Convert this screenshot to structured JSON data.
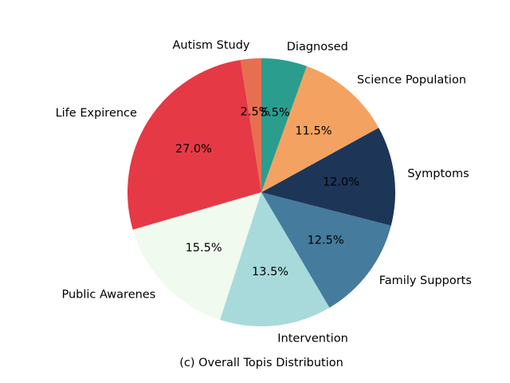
{
  "chart_data": {
    "type": "pie",
    "title": "",
    "caption": "(c) Overall Topis Distribution",
    "start_angle_deg": 90,
    "direction": "counterclockwise",
    "slices": [
      {
        "label": "Autism Study",
        "value": 2.5,
        "pct_label": "2.5%",
        "color": "#e76f51"
      },
      {
        "label": "Life Expirence",
        "value": 27.0,
        "pct_label": "27.0%",
        "color": "#e63946"
      },
      {
        "label": "Public Awarenes",
        "value": 15.5,
        "pct_label": "15.5%",
        "color": "#f1faee"
      },
      {
        "label": "Intervention",
        "value": 13.5,
        "pct_label": "13.5%",
        "color": "#a8dadc"
      },
      {
        "label": "Family Supports",
        "value": 12.5,
        "pct_label": "12.5%",
        "color": "#457b9d"
      },
      {
        "label": "Symptoms",
        "value": 12.0,
        "pct_label": "12.0%",
        "color": "#1d3557"
      },
      {
        "label": "Science Population",
        "value": 11.5,
        "pct_label": "11.5%",
        "color": "#f4a261"
      },
      {
        "label": "Diagnosed",
        "value": 5.5,
        "pct_label": "5.5%",
        "color": "#2a9d8f"
      }
    ]
  }
}
